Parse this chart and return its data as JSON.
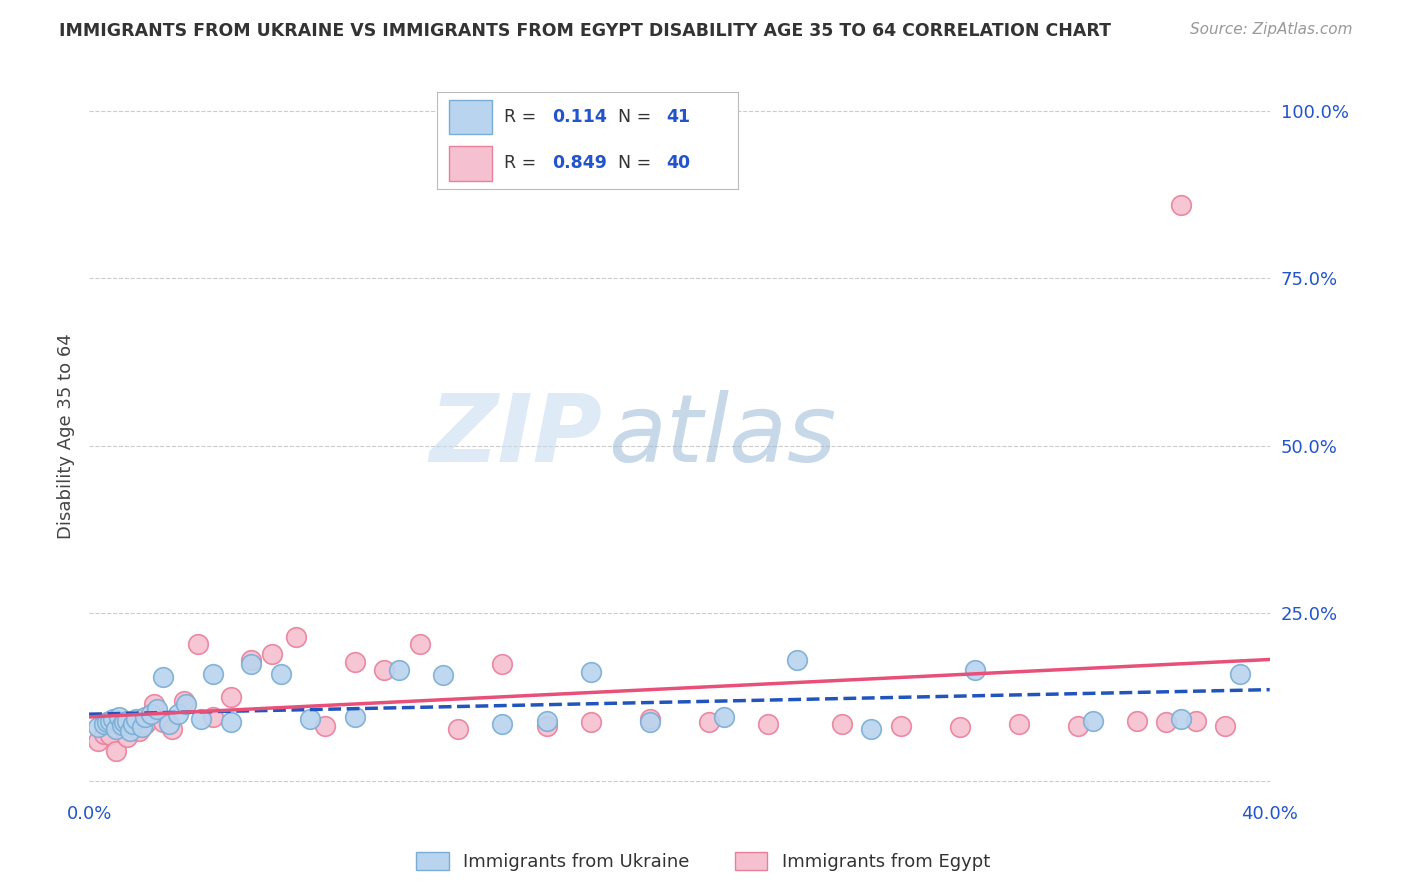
{
  "title": "IMMIGRANTS FROM UKRAINE VS IMMIGRANTS FROM EGYPT DISABILITY AGE 35 TO 64 CORRELATION CHART",
  "source": "Source: ZipAtlas.com",
  "ylabel": "Disability Age 35 to 64",
  "xlim": [
    0.0,
    0.4
  ],
  "ylim": [
    -0.02,
    1.05
  ],
  "xticks": [
    0.0,
    0.08,
    0.16,
    0.24,
    0.32,
    0.4
  ],
  "xticklabels": [
    "0.0%",
    "",
    "",
    "",
    "",
    "40.0%"
  ],
  "ytick_positions": [
    0.0,
    0.25,
    0.5,
    0.75,
    1.0
  ],
  "ytick_labels_right": [
    "",
    "25.0%",
    "50.0%",
    "75.0%",
    "100.0%"
  ],
  "ukraine_color": "#b8d4ee",
  "ukraine_edge": "#7aadd4",
  "egypt_color": "#f5c0d0",
  "egypt_edge": "#e8809a",
  "ukraine_line_color": "#2255bb",
  "egypt_line_color": "#e8507a",
  "R_ukraine": 0.114,
  "N_ukraine": 41,
  "R_egypt": 0.849,
  "N_egypt": 40,
  "ukraine_scatter_x": [
    0.003,
    0.005,
    0.006,
    0.007,
    0.008,
    0.009,
    0.01,
    0.011,
    0.012,
    0.013,
    0.014,
    0.015,
    0.016,
    0.018,
    0.019,
    0.021,
    0.023,
    0.025,
    0.027,
    0.03,
    0.033,
    0.038,
    0.042,
    0.048,
    0.055,
    0.065,
    0.075,
    0.09,
    0.105,
    0.12,
    0.14,
    0.155,
    0.17,
    0.19,
    0.215,
    0.24,
    0.265,
    0.3,
    0.34,
    0.37,
    0.39
  ],
  "ukraine_scatter_y": [
    0.08,
    0.085,
    0.088,
    0.09,
    0.092,
    0.078,
    0.095,
    0.083,
    0.088,
    0.09,
    0.075,
    0.085,
    0.092,
    0.08,
    0.095,
    0.1,
    0.108,
    0.155,
    0.085,
    0.1,
    0.115,
    0.092,
    0.16,
    0.088,
    0.175,
    0.16,
    0.092,
    0.095,
    0.165,
    0.158,
    0.085,
    0.09,
    0.162,
    0.088,
    0.095,
    0.18,
    0.078,
    0.165,
    0.09,
    0.092,
    0.16
  ],
  "egypt_scatter_x": [
    0.003,
    0.005,
    0.007,
    0.009,
    0.011,
    0.013,
    0.015,
    0.017,
    0.019,
    0.022,
    0.025,
    0.028,
    0.032,
    0.037,
    0.042,
    0.048,
    0.055,
    0.062,
    0.07,
    0.08,
    0.09,
    0.1,
    0.112,
    0.125,
    0.14,
    0.155,
    0.17,
    0.19,
    0.21,
    0.23,
    0.255,
    0.275,
    0.295,
    0.315,
    0.335,
    0.355,
    0.365,
    0.375,
    0.385,
    0.37
  ],
  "egypt_scatter_y": [
    0.06,
    0.07,
    0.068,
    0.045,
    0.08,
    0.065,
    0.09,
    0.075,
    0.085,
    0.115,
    0.088,
    0.078,
    0.12,
    0.205,
    0.095,
    0.125,
    0.18,
    0.19,
    0.215,
    0.082,
    0.178,
    0.165,
    0.205,
    0.078,
    0.175,
    0.082,
    0.088,
    0.092,
    0.088,
    0.085,
    0.085,
    0.082,
    0.08,
    0.085,
    0.082,
    0.09,
    0.088,
    0.09,
    0.082,
    0.86
  ],
  "watermark_zip": "ZIP",
  "watermark_atlas": "atlas",
  "bg_color": "#ffffff",
  "grid_color": "#cccccc"
}
